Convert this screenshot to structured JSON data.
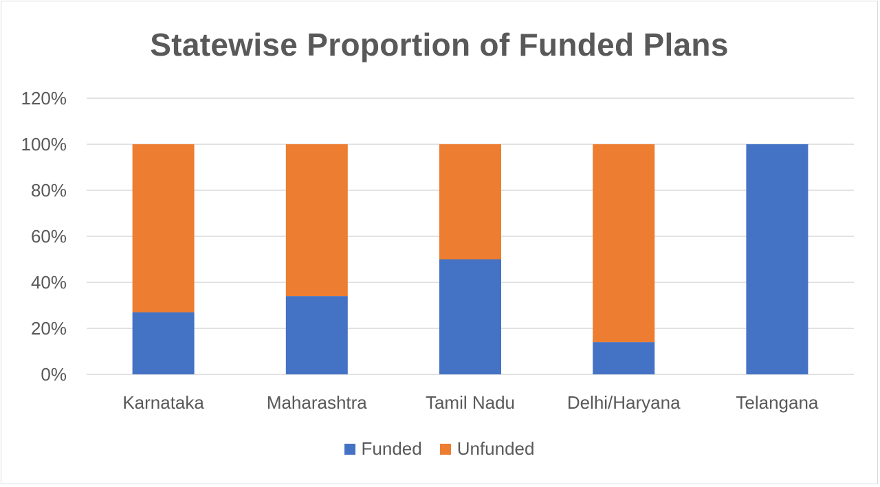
{
  "chart_data": {
    "type": "bar",
    "stacked": true,
    "title": "Statewise Proportion of Funded Plans",
    "xlabel": "",
    "ylabel": "",
    "ylim": [
      0,
      120
    ],
    "yticks": [
      0,
      20,
      40,
      60,
      80,
      100,
      120
    ],
    "ytick_labels": [
      "0%",
      "20%",
      "40%",
      "60%",
      "80%",
      "100%",
      "120%"
    ],
    "grid": true,
    "legend_position": "bottom",
    "categories": [
      "Karnataka",
      "Maharashtra",
      "Tamil Nadu",
      "Delhi/Haryana",
      "Telangana"
    ],
    "series": [
      {
        "name": "Funded",
        "color": "#4472c4",
        "values": [
          27,
          34,
          50,
          14,
          100
        ]
      },
      {
        "name": "Unfunded",
        "color": "#ed7d31",
        "values": [
          73,
          66,
          50,
          86,
          0
        ]
      }
    ]
  }
}
